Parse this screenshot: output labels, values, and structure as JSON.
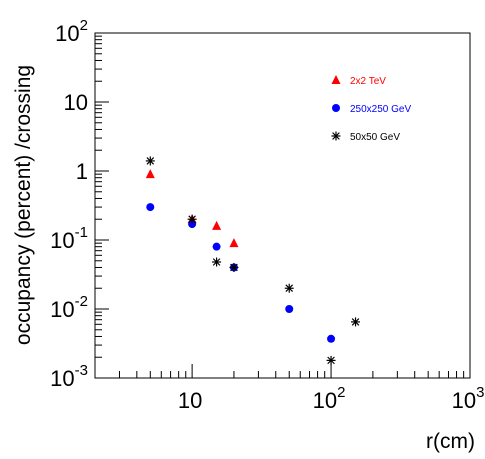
{
  "chart_data": {
    "type": "scatter",
    "title": "",
    "xlabel": "r(cm)",
    "ylabel": "occupancy (percent) /crossing",
    "xscale": "log",
    "yscale": "log",
    "xlim": [
      2,
      1000
    ],
    "ylim": [
      0.001,
      100
    ],
    "grid": false,
    "legend_position": "top-right",
    "x_major_ticks": [
      {
        "value": 10,
        "base": "10",
        "exp": ""
      },
      {
        "value": 100,
        "base": "10",
        "exp": "2"
      },
      {
        "value": 1000,
        "base": "10",
        "exp": "3"
      }
    ],
    "y_major_ticks": [
      {
        "value": 0.001,
        "base": "10",
        "exp": "-3"
      },
      {
        "value": 0.01,
        "base": "10",
        "exp": "-2"
      },
      {
        "value": 0.1,
        "base": "10",
        "exp": "-1"
      },
      {
        "value": 1,
        "base": "1",
        "exp": ""
      },
      {
        "value": 10,
        "base": "10",
        "exp": ""
      },
      {
        "value": 100,
        "base": "10",
        "exp": "2"
      }
    ],
    "series": [
      {
        "name": "2x2 TeV",
        "marker": "triangle",
        "color": "#ff0000",
        "points": [
          {
            "x": 5,
            "y": 0.9
          },
          {
            "x": 10,
            "y": 0.2
          },
          {
            "x": 15,
            "y": 0.16
          },
          {
            "x": 20,
            "y": 0.09
          }
        ]
      },
      {
        "name": "250x250 GeV",
        "marker": "circle",
        "color": "#0000ff",
        "points": [
          {
            "x": 5,
            "y": 0.3
          },
          {
            "x": 10,
            "y": 0.17
          },
          {
            "x": 15,
            "y": 0.08
          },
          {
            "x": 20,
            "y": 0.04
          },
          {
            "x": 50,
            "y": 0.01
          },
          {
            "x": 100,
            "y": 0.0037
          }
        ]
      },
      {
        "name": "50x50 GeV",
        "marker": "star",
        "color": "#000000",
        "points": [
          {
            "x": 5,
            "y": 1.4
          },
          {
            "x": 10,
            "y": 0.2
          },
          {
            "x": 15,
            "y": 0.048
          },
          {
            "x": 20,
            "y": 0.04
          },
          {
            "x": 50,
            "y": 0.02
          },
          {
            "x": 100,
            "y": 0.0018
          },
          {
            "x": 150,
            "y": 0.0065
          }
        ]
      }
    ]
  }
}
